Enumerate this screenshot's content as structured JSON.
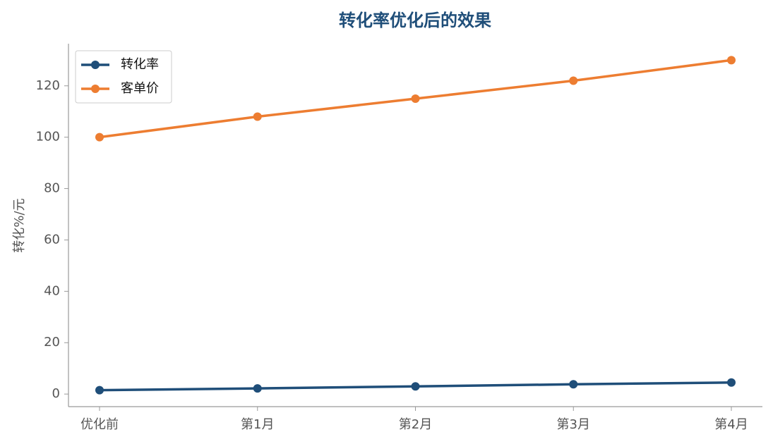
{
  "chart_data": {
    "type": "line",
    "title": "转化率优化后的效果",
    "y_label": "转化%/元",
    "categories": [
      "优化前",
      "第1月",
      "第2月",
      "第3月",
      "第4月"
    ],
    "series": [
      {
        "name": "转化率",
        "color": "#1f4e79",
        "values": [
          1.5,
          2.2,
          3.0,
          3.8,
          4.5
        ]
      },
      {
        "name": "客单价",
        "color": "#ed7d31",
        "values": [
          100,
          108,
          115,
          122,
          130
        ]
      }
    ],
    "ylim": [
      -4.9,
      136.4
    ],
    "yticks": [
      0,
      20,
      40,
      60,
      80,
      100,
      120
    ],
    "grid": false,
    "legend": "upper left"
  }
}
